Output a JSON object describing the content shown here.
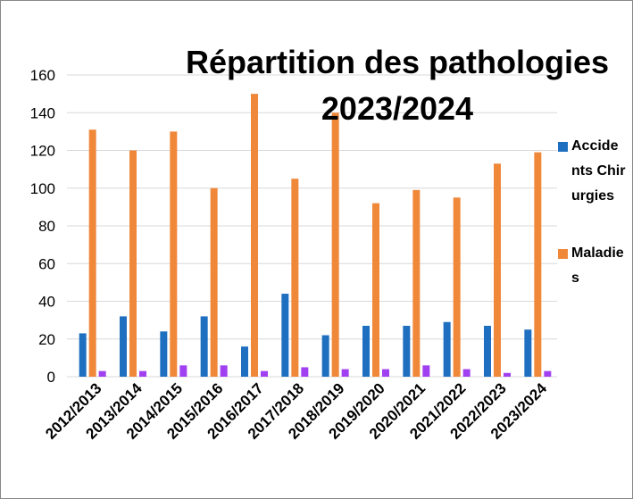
{
  "chart_data": {
    "type": "bar",
    "title": "Répartition des pathologies 2023/2024",
    "categories": [
      "2012/2013",
      "2013/2014",
      "2014/2015",
      "2015/2016",
      "2016/2017",
      "2017/2018",
      "2018/2019",
      "2019/2020",
      "2020/2021",
      "2021/2022",
      "2022/2023",
      "2023/2024"
    ],
    "series": [
      {
        "name": "Accidents Chirurgies",
        "color": "#1f6fc0",
        "values": [
          23,
          32,
          24,
          32,
          16,
          44,
          22,
          27,
          27,
          29,
          27,
          25
        ]
      },
      {
        "name": "Maladies",
        "color": "#f0883a",
        "values": [
          131,
          120,
          130,
          100,
          150,
          105,
          140,
          92,
          99,
          95,
          113,
          119
        ]
      },
      {
        "color": "#a040f0",
        "values": [
          3,
          3,
          6,
          6,
          3,
          5,
          4,
          4,
          6,
          4,
          2,
          3
        ]
      }
    ],
    "ylim": [
      0,
      160
    ],
    "yticks": [
      0,
      20,
      40,
      60,
      80,
      100,
      120,
      140,
      160
    ],
    "grid": true,
    "legend": "right"
  }
}
